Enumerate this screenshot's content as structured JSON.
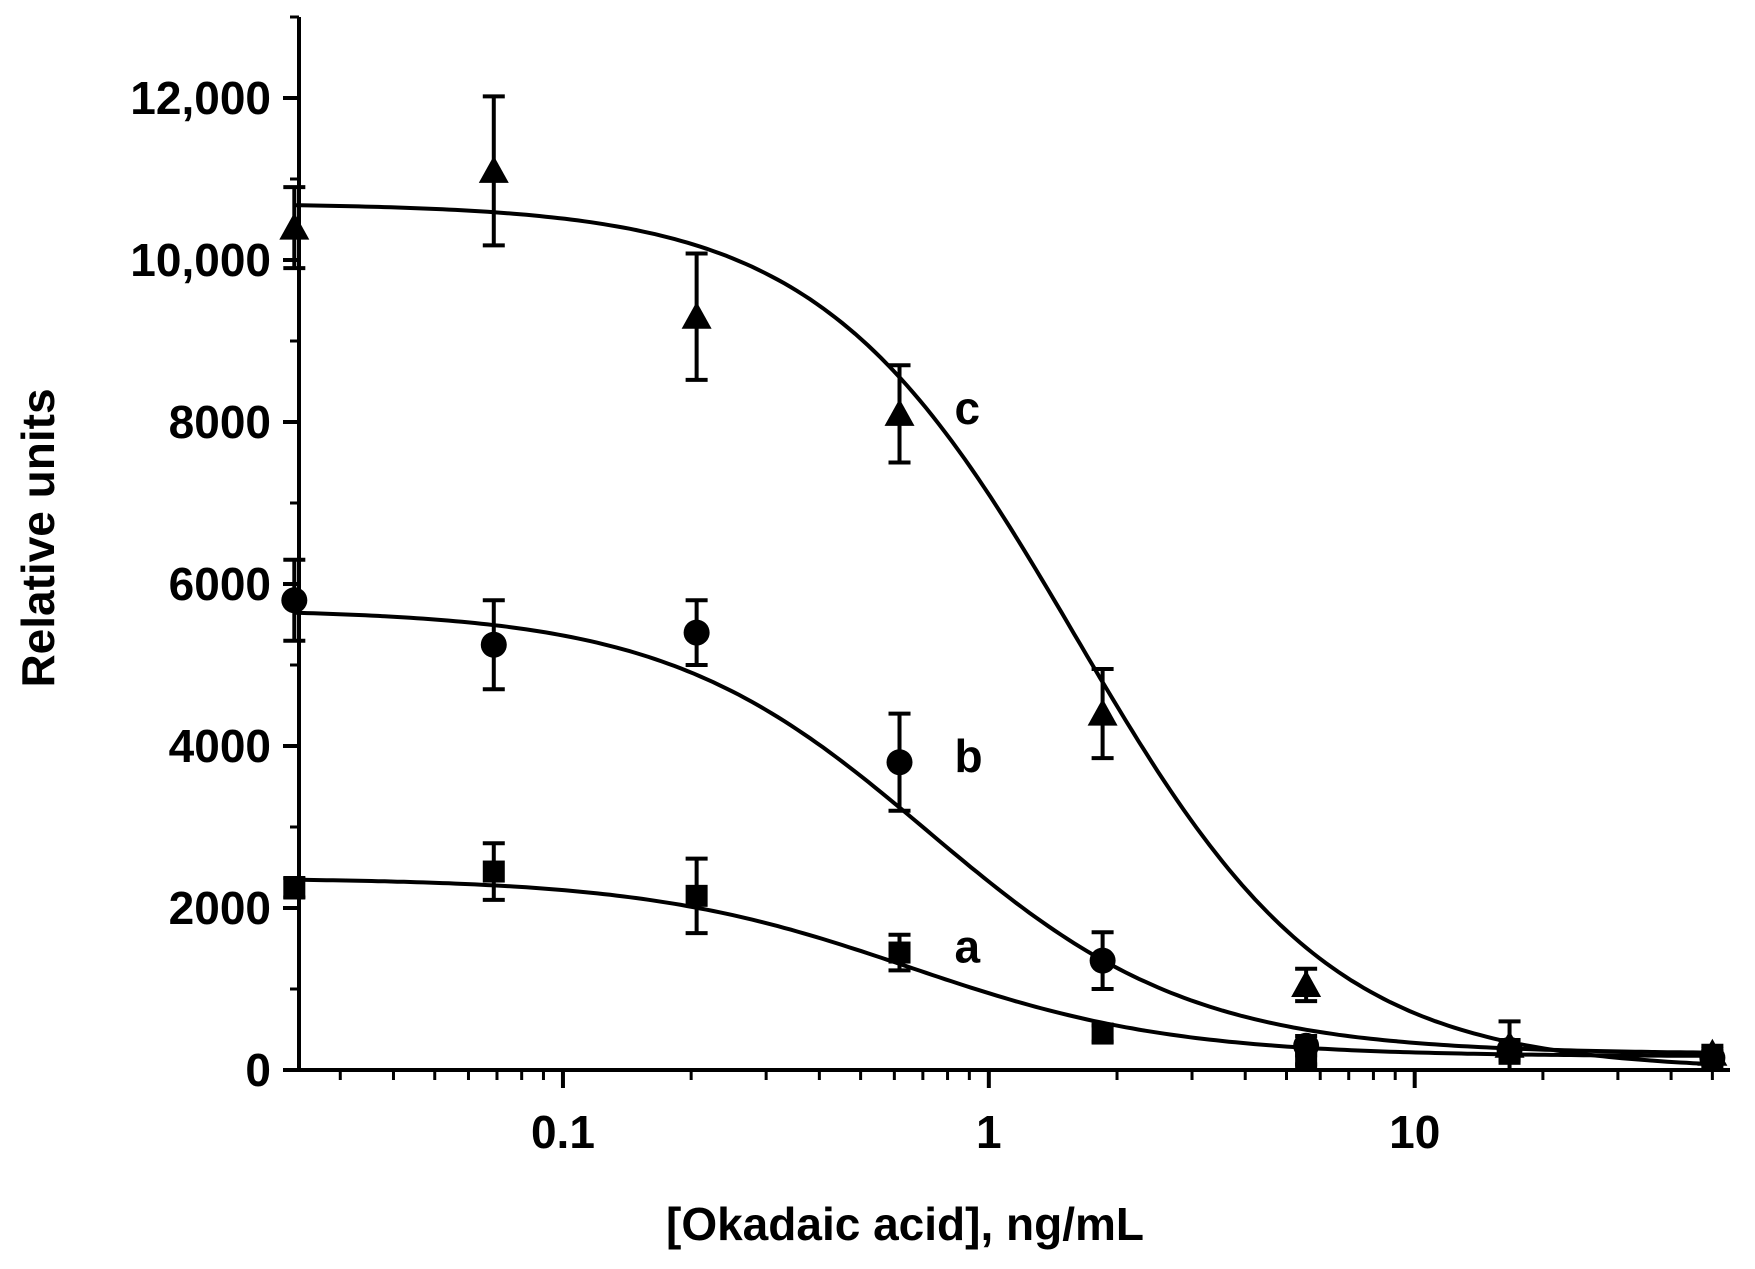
{
  "chart_data": {
    "type": "scatter",
    "title": "",
    "xlabel": "[Okadaic acid], ng/mL",
    "ylabel": "Relative units",
    "x_scale": "log",
    "xlim": [
      0.024,
      55
    ],
    "ylim": [
      0,
      13000
    ],
    "x_ticks": [
      {
        "value": 0.1,
        "label": "0.1"
      },
      {
        "value": 1,
        "label": "1"
      },
      {
        "value": 10,
        "label": "10"
      }
    ],
    "y_ticks": [
      {
        "value": 0,
        "label": "0"
      },
      {
        "value": 2000,
        "label": "2000"
      },
      {
        "value": 4000,
        "label": "4000"
      },
      {
        "value": 6000,
        "label": "6000"
      },
      {
        "value": 8000,
        "label": "8000"
      },
      {
        "value": 10000,
        "label": "10,000"
      },
      {
        "value": 12000,
        "label": "12,000"
      }
    ],
    "grid": false,
    "legend": "none",
    "series": [
      {
        "name": "a",
        "marker": "square",
        "x": [
          0.0234,
          0.0688,
          0.206,
          0.617,
          1.85,
          5.56,
          16.7,
          50
        ],
        "y": [
          2250,
          2450,
          2150,
          1450,
          450,
          150,
          200,
          150
        ],
        "error": [
          120,
          350,
          460,
          220,
          100,
          80,
          80,
          80
        ],
        "fit": {
          "top": 2370,
          "bottom": 170,
          "ec50": 0.65,
          "hill": 1.4
        }
      },
      {
        "name": "b",
        "marker": "circle",
        "x": [
          0.0234,
          0.0688,
          0.206,
          0.617,
          1.85,
          5.56,
          16.7,
          50
        ],
        "y": [
          5800,
          5250,
          5400,
          3800,
          1350,
          300,
          250,
          150
        ],
        "error": [
          500,
          550,
          400,
          600,
          350,
          120,
          120,
          80
        ],
        "fit": {
          "top": 5690,
          "bottom": 200,
          "ec50": 0.72,
          "hill": 1.4
        }
      },
      {
        "name": "c",
        "marker": "triangle",
        "x": [
          0.0234,
          0.0688,
          0.206,
          0.617,
          1.85,
          5.56,
          16.7,
          50
        ],
        "y": [
          10400,
          11100,
          9300,
          8100,
          4400,
          1050,
          300,
          200
        ],
        "error": [
          500,
          920,
          780,
          600,
          550,
          200,
          300,
          100
        ],
        "fit": {
          "top": 10700,
          "bottom": 0,
          "ec50": 1.6,
          "hill": 1.45
        }
      }
    ]
  }
}
